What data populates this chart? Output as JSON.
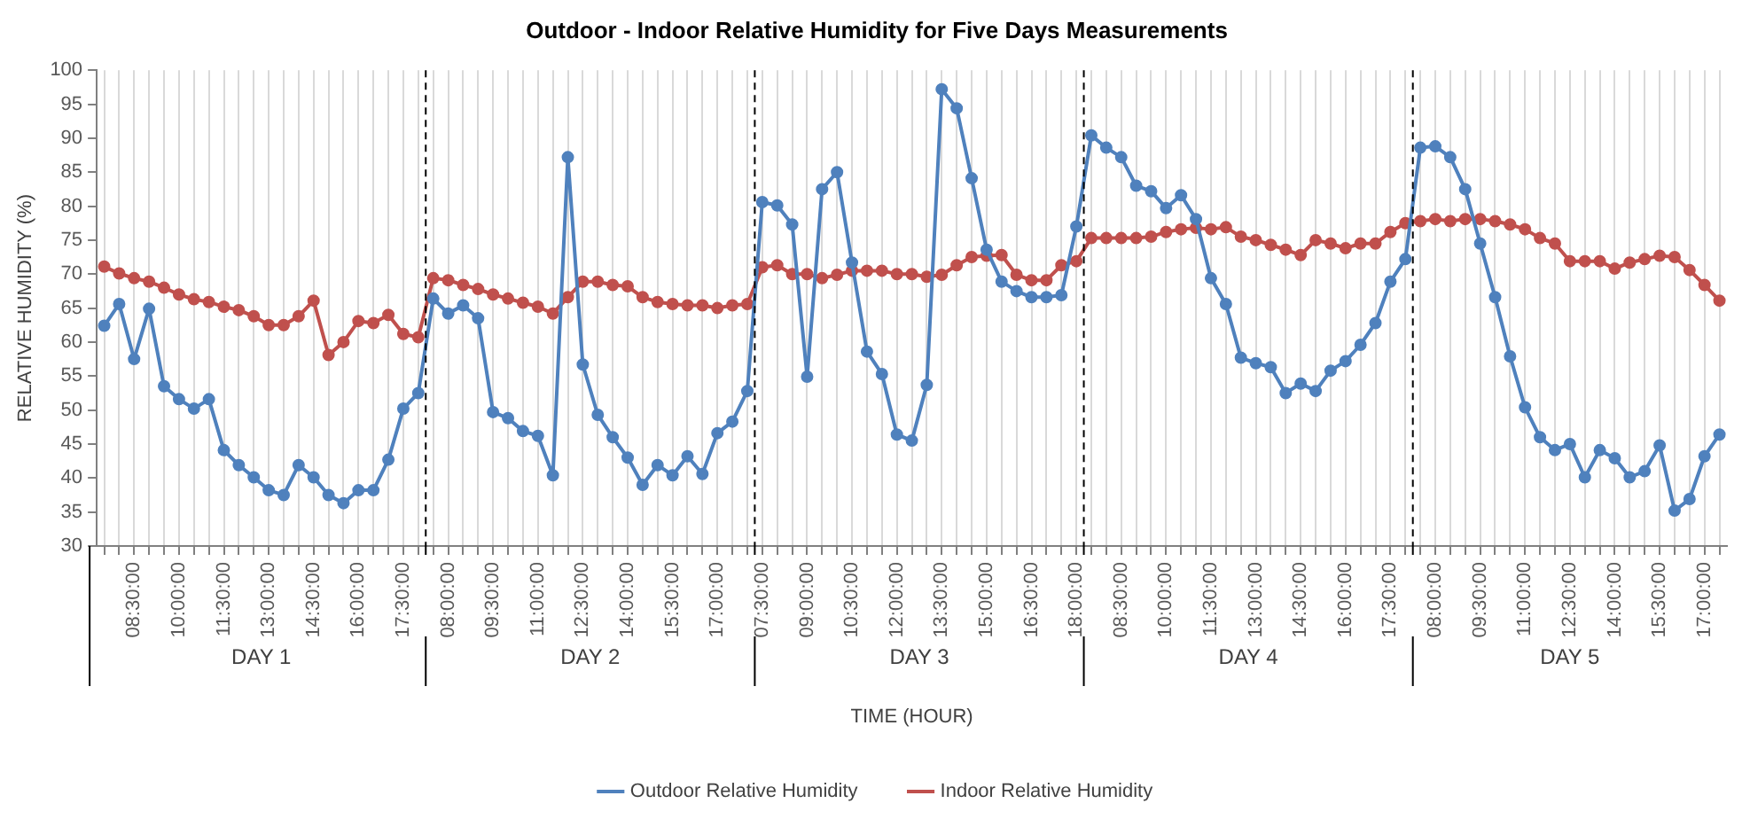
{
  "chart_data": {
    "type": "line",
    "title": "Outdoor - Indoor Relative Humidity for Five Days Measurements",
    "xlabel": "TIME (HOUR)",
    "ylabel": "RELATIVE HUMIDITY (%)",
    "categories": [
      null,
      null,
      "08:30:00",
      null,
      null,
      "10:00:00",
      null,
      null,
      "11:30:00",
      null,
      null,
      "13:00:00",
      null,
      null,
      "14:30:00",
      null,
      null,
      "16:00:00",
      null,
      null,
      "17:30:00",
      null,
      null,
      "08:00:00",
      null,
      null,
      "09:30:00",
      null,
      null,
      "11:00:00",
      null,
      null,
      "12:30:00",
      null,
      null,
      "14:00:00",
      null,
      null,
      "15:30:00",
      null,
      null,
      "17:00:00",
      null,
      null,
      "07:30:00",
      null,
      null,
      "09:00:00",
      null,
      null,
      "10:30:00",
      null,
      null,
      "12:00:00",
      null,
      null,
      "13:30:00",
      null,
      null,
      "15:00:00",
      null,
      null,
      "16:30:00",
      null,
      null,
      "18:00:00",
      null,
      null,
      "08:30:00",
      null,
      null,
      "10:00:00",
      null,
      null,
      "11:30:00",
      null,
      null,
      "13:00:00",
      null,
      null,
      "14:30:00",
      null,
      null,
      "16:00:00",
      null,
      null,
      "17:30:00",
      null,
      null,
      "08:00:00",
      null,
      null,
      "09:30:00",
      null,
      null,
      "11:00:00",
      null,
      null,
      "12:30:00",
      null,
      null,
      "14:00:00",
      null,
      null,
      "15:30:00",
      null,
      null,
      "17:00:00",
      null
    ],
    "series": [
      {
        "name": "Outdoor Relative Humidity",
        "color": "#4f81bd",
        "values": [
          62.4,
          65.6,
          57.5,
          64.9,
          53.5,
          51.6,
          50.2,
          51.6,
          44.1,
          41.9,
          40.1,
          38.2,
          37.5,
          41.9,
          40.1,
          37.5,
          36.3,
          38.2,
          38.2,
          42.7,
          50.2,
          52.5,
          66.4,
          64.2,
          65.4,
          63.5,
          49.7,
          48.8,
          46.9,
          46.2,
          40.4,
          87.2,
          56.7,
          49.3,
          46.0,
          43.0,
          39.0,
          41.9,
          40.4,
          43.2,
          40.6,
          46.6,
          48.3,
          52.8,
          80.6,
          80.1,
          77.3,
          54.9,
          82.5,
          85.0,
          71.7,
          58.6,
          55.3,
          46.4,
          45.5,
          53.7,
          97.2,
          94.4,
          84.1,
          73.6,
          68.9,
          67.5,
          66.6,
          66.6,
          66.9,
          77,
          90.4,
          88.6,
          87.2,
          83.0,
          82.2,
          79.7,
          81.6,
          78.1,
          69.4,
          65.6,
          57.7,
          56.9,
          56.3,
          52.5,
          53.9,
          52.8,
          55.8,
          57.2,
          59.6,
          62.8,
          68.9,
          72.2,
          88.6,
          88.8,
          87.2,
          82.5,
          74.5,
          66.6,
          57.9,
          50.4,
          46.0,
          44.1,
          45.0,
          40.1,
          44.1,
          42.9,
          40.1,
          41.0,
          44.8,
          35.2,
          36.9,
          43.2,
          46.4
        ]
      },
      {
        "name": "Indoor Relative Humidity",
        "color": "#c0504d",
        "values": [
          71.1,
          70.1,
          69.4,
          68.9,
          68.0,
          67.0,
          66.3,
          65.9,
          65.2,
          64.7,
          63.8,
          62.5,
          62.5,
          63.8,
          66.1,
          58.1,
          60.0,
          63.1,
          62.8,
          64.0,
          61.2,
          60.7,
          69.4,
          69.1,
          68.4,
          67.8,
          67.0,
          66.4,
          65.8,
          65.2,
          64.2,
          66.6,
          68.9,
          68.9,
          68.4,
          68.2,
          66.6,
          65.9,
          65.6,
          65.4,
          65.4,
          65.0,
          65.4,
          65.6,
          71.0,
          71.3,
          70.0,
          70.0,
          69.4,
          69.9,
          70.5,
          70.5,
          70.5,
          70.0,
          70.0,
          69.6,
          69.9,
          71.3,
          72.5,
          72.7,
          72.8,
          69.9,
          69.1,
          69.1,
          71.3,
          71.9,
          75.3,
          75.3,
          75.3,
          75.3,
          75.5,
          76.2,
          76.6,
          76.8,
          76.6,
          76.9,
          75.5,
          75.0,
          74.3,
          73.6,
          72.8,
          75.0,
          74.5,
          73.8,
          74.5,
          74.5,
          76.2,
          77.5,
          77.8,
          78.1,
          77.8,
          78.1,
          78.1,
          77.8,
          77.3,
          76.6,
          75.3,
          74.5,
          71.9,
          71.9,
          71.9,
          70.8,
          71.7,
          72.2,
          72.7,
          72.5,
          70.6,
          68.4,
          66.1
        ]
      }
    ],
    "ylim": [
      30,
      100
    ],
    "yticks": [
      30,
      35,
      40,
      45,
      50,
      55,
      60,
      65,
      70,
      75,
      80,
      85,
      90,
      95,
      100
    ],
    "annotations": [
      "DAY 1",
      "DAY 2",
      "DAY 3",
      "DAY 4",
      "DAY 5"
    ],
    "grid": "x",
    "legend": "bottom",
    "marker": "circle",
    "line_style": "solid"
  }
}
